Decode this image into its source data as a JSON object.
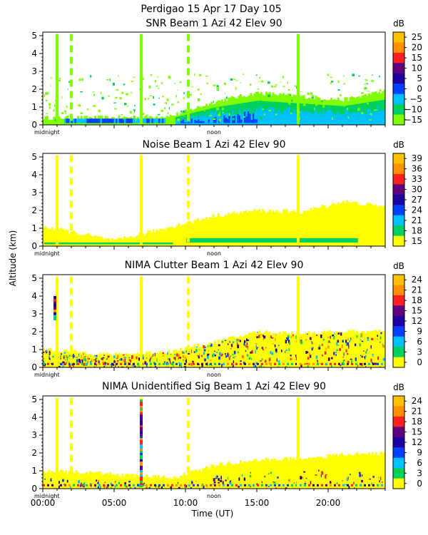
{
  "header": {
    "title": "Perdigao  15 Apr 17 Day 105"
  },
  "xaxis": {
    "label": "Time (UT)",
    "ticks": [
      "00:00",
      "05:00",
      "10:00",
      "15:00",
      "20:00"
    ],
    "tick_hours": [
      0,
      5,
      10,
      15,
      20
    ],
    "range": [
      0,
      24
    ],
    "markers": [
      {
        "label": "midnight",
        "hour": 0
      },
      {
        "label": "noon",
        "hour": 12
      }
    ]
  },
  "yaxis": {
    "label": "Altitude (km)",
    "ticks": [
      "0",
      "1",
      "2",
      "3",
      "4",
      "5"
    ],
    "range": [
      0,
      5.2
    ]
  },
  "colors": {
    "yellow": "#ffff00",
    "lime": "#80ff00",
    "green": "#00d060",
    "cyan": "#00c0ff",
    "blue": "#0040ff",
    "navy": "#2000a0",
    "purple": "#600080",
    "red": "#ff2020",
    "orange": "#ff9000",
    "gold": "#ffc000"
  },
  "chart_data": [
    {
      "type": "heatmap",
      "title": "SNR Beam 1 Azi  42 Elev 90",
      "colorbar": {
        "unit": "dB",
        "ticks": [
          "25",
          "20",
          "15",
          "10",
          "5",
          "0",
          "−5",
          "−10",
          "−15"
        ],
        "colors": [
          "#ffc000",
          "#ff9000",
          "#ff2020",
          "#600080",
          "#2000a0",
          "#0040ff",
          "#00c0ff",
          "#00d060",
          "#80ff00"
        ]
      },
      "boundary_layer_top_km": [
        {
          "hour": 0,
          "km": 0.4
        },
        {
          "hour": 5,
          "km": 0.4
        },
        {
          "hour": 9,
          "km": 0.5
        },
        {
          "hour": 12,
          "km": 1.3
        },
        {
          "hour": 15,
          "km": 1.8
        },
        {
          "hour": 18,
          "km": 1.6
        },
        {
          "hour": 21,
          "km": 1.4
        },
        {
          "hour": 24,
          "km": 1.9
        }
      ]
    },
    {
      "type": "heatmap",
      "title": "Noise Beam 1 Azi  42 Elev 90",
      "colorbar": {
        "unit": "dB",
        "ticks": [
          "39",
          "36",
          "33",
          "30",
          "27",
          "24",
          "21",
          "18",
          "15"
        ],
        "colors": [
          "#ffc000",
          "#ff9000",
          "#ff2020",
          "#600080",
          "#2000a0",
          "#0040ff",
          "#00c0ff",
          "#00d060",
          "#ffff00"
        ]
      },
      "boundary_layer_top_km": [
        {
          "hour": 0,
          "km": 1.1
        },
        {
          "hour": 5,
          "km": 0.3
        },
        {
          "hour": 9,
          "km": 1.1
        },
        {
          "hour": 12,
          "km": 1.7
        },
        {
          "hour": 15,
          "km": 2.0
        },
        {
          "hour": 18,
          "km": 1.9
        },
        {
          "hour": 21,
          "km": 2.5
        },
        {
          "hour": 24,
          "km": 2.2
        }
      ]
    },
    {
      "type": "heatmap",
      "title": "NIMA Clutter Beam 1 Azi  42 Elev 90",
      "colorbar": {
        "unit": "dB",
        "ticks": [
          "24",
          "21",
          "18",
          "15",
          "12",
          "9",
          "6",
          "3",
          "0"
        ],
        "colors": [
          "#ffc000",
          "#ff9000",
          "#ff2020",
          "#600080",
          "#2000a0",
          "#0040ff",
          "#00c0ff",
          "#00d060",
          "#ffff00"
        ]
      },
      "boundary_layer_top_km": [
        {
          "hour": 0,
          "km": 1.0
        },
        {
          "hour": 5,
          "km": 0.7
        },
        {
          "hour": 9,
          "km": 0.9
        },
        {
          "hour": 12,
          "km": 1.4
        },
        {
          "hour": 15,
          "km": 2.0
        },
        {
          "hour": 18,
          "km": 1.9
        },
        {
          "hour": 21,
          "km": 2.0
        },
        {
          "hour": 24,
          "km": 2.0
        }
      ]
    },
    {
      "type": "heatmap",
      "title": "NIMA Unidentified Sig Beam 1 Azi  42 Elev 90",
      "colorbar": {
        "unit": "dB",
        "ticks": [
          "24",
          "21",
          "18",
          "15",
          "12",
          "9",
          "6",
          "3",
          "0"
        ],
        "colors": [
          "#ffc000",
          "#ff9000",
          "#ff2020",
          "#600080",
          "#2000a0",
          "#0040ff",
          "#00c0ff",
          "#00d060",
          "#ffff00"
        ]
      },
      "boundary_layer_top_km": [
        {
          "hour": 0,
          "km": 1.0
        },
        {
          "hour": 5,
          "km": 0.8
        },
        {
          "hour": 9,
          "km": 0.6
        },
        {
          "hour": 12,
          "km": 1.3
        },
        {
          "hour": 15,
          "km": 1.6
        },
        {
          "hour": 18,
          "km": 1.7
        },
        {
          "hour": 21,
          "km": 1.9
        },
        {
          "hour": 24,
          "km": 2.0
        }
      ]
    }
  ]
}
